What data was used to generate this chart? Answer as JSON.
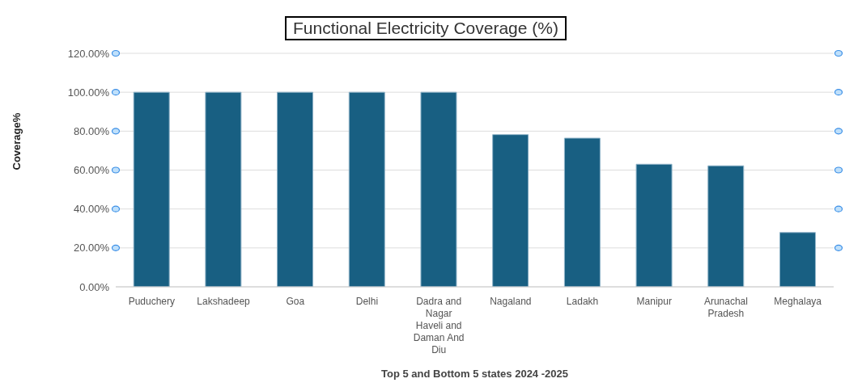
{
  "chart_data": {
    "type": "bar",
    "title": "Functional Electricity Coverage (%)",
    "xlabel": "Top 5 and Bottom 5 states 2024   -2025",
    "ylabel": "Coverage%",
    "categories": [
      "Puduchery",
      "Lakshadeep",
      "Goa",
      "Delhi",
      "Dadra and Nagar Haveli and Daman And Diu",
      "Nagaland",
      "Ladakh",
      "Manipur",
      "Arunachal Pradesh",
      "Meghalaya"
    ],
    "values": [
      100,
      100,
      100,
      100,
      100,
      78.2,
      76.4,
      63,
      62.2,
      27.9
    ],
    "color": "#185f82",
    "ylim": [
      0,
      120
    ],
    "yticks": [
      {
        "value": 0,
        "label": "0.00%"
      },
      {
        "value": 20,
        "label": "20.00%"
      },
      {
        "value": 40,
        "label": "40.00%"
      },
      {
        "value": 60,
        "label": "60.00%"
      },
      {
        "value": 80,
        "label": "80.00%"
      },
      {
        "value": 100,
        "label": "100.00%"
      },
      {
        "value": 120,
        "label": "120.00%"
      }
    ],
    "grid": "y",
    "legend": false
  }
}
